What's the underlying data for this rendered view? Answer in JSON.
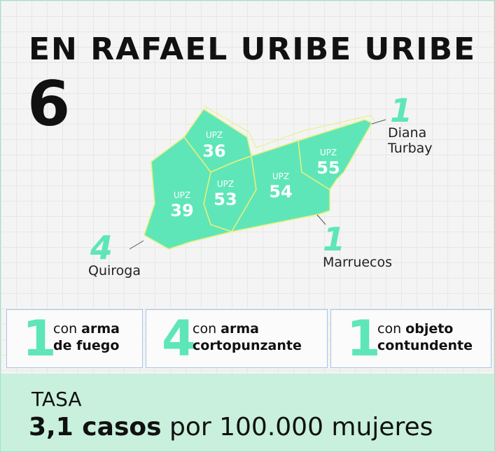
{
  "title": "EN RAFAEL URIBE URIBE",
  "total": 6,
  "upz": [
    {
      "label": "UPZ",
      "number": "36"
    },
    {
      "label": "UPZ",
      "number": "53"
    },
    {
      "label": "UPZ",
      "number": "54"
    },
    {
      "label": "UPZ",
      "number": "55"
    },
    {
      "label": "UPZ",
      "number": "39"
    }
  ],
  "callouts": [
    {
      "count": 1,
      "place": "Diana Turbay"
    },
    {
      "count": 4,
      "place": "Quiroga"
    },
    {
      "count": 1,
      "place": "Marruecos"
    }
  ],
  "weapons": [
    {
      "count": 1,
      "prefix": "con",
      "type": "arma de fuego"
    },
    {
      "count": 4,
      "prefix": "con",
      "type": "arma cortopunzante"
    },
    {
      "count": 1,
      "prefix": "con",
      "type": "objeto contundente"
    }
  ],
  "rate": {
    "label": "TASA",
    "value": "3,1 casos",
    "rest": "por 100.000 mujeres"
  }
}
